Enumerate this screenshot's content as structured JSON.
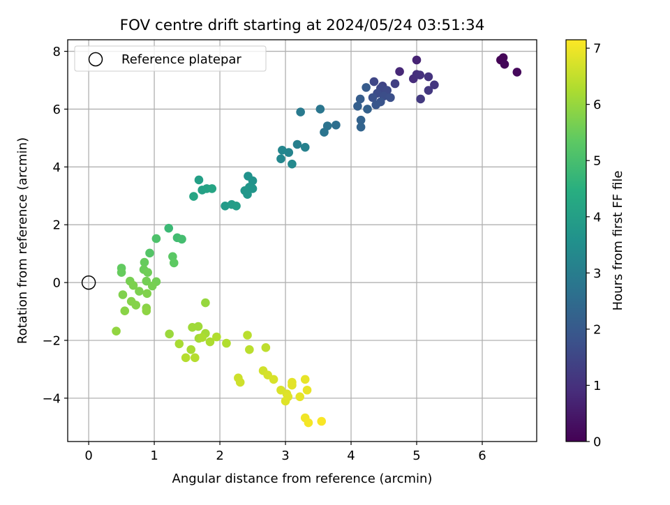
{
  "chart_data": {
    "type": "scatter",
    "title": "FOV centre drift starting at 2024/05/24 03:51:34",
    "xlabel": "Angular distance from reference (arcmin)",
    "ylabel": "Rotation from reference (arcmin)",
    "xlim": [
      -0.32,
      6.83
    ],
    "ylim": [
      -5.5,
      8.4
    ],
    "xticks": [
      0,
      1,
      2,
      3,
      4,
      5,
      6
    ],
    "yticks": [
      -4,
      -2,
      0,
      2,
      4,
      6,
      8
    ],
    "grid": true,
    "legend": {
      "position": "top-left",
      "entries": [
        "Reference platepar"
      ]
    },
    "colorbar": {
      "label": "Hours from first FF file",
      "range": [
        0,
        7.15
      ],
      "ticks": [
        0,
        1,
        2,
        3,
        4,
        5,
        6,
        7
      ],
      "colormap": "viridis"
    },
    "reference_point": {
      "x": 0,
      "y": 0,
      "label": "Reference platepar"
    },
    "series": [
      {
        "color_by": "hours",
        "points": [
          [
            6.28,
            7.7,
            0.05
          ],
          [
            6.32,
            7.78,
            0.08
          ],
          [
            6.34,
            7.55,
            0.12
          ],
          [
            6.53,
            7.28,
            0.15
          ],
          [
            5.0,
            7.7,
            0.7
          ],
          [
            4.74,
            7.3,
            0.8
          ],
          [
            4.95,
            7.05,
            0.9
          ],
          [
            5.0,
            7.2,
            0.95
          ],
          [
            5.05,
            7.18,
            1.0
          ],
          [
            5.18,
            7.12,
            1.05
          ],
          [
            5.27,
            6.84,
            1.1
          ],
          [
            5.18,
            6.65,
            1.15
          ],
          [
            5.06,
            6.35,
            1.2
          ],
          [
            4.67,
            6.88,
            1.35
          ],
          [
            4.48,
            6.8,
            1.45
          ],
          [
            4.35,
            6.95,
            1.5
          ],
          [
            4.45,
            6.72,
            1.55
          ],
          [
            4.55,
            6.65,
            1.6
          ],
          [
            4.4,
            6.55,
            1.65
          ],
          [
            4.5,
            6.45,
            1.7
          ],
          [
            4.6,
            6.4,
            1.75
          ],
          [
            4.33,
            6.4,
            1.8
          ],
          [
            4.45,
            6.25,
            1.85
          ],
          [
            4.38,
            6.15,
            1.9
          ],
          [
            4.23,
            6.75,
            2.05
          ],
          [
            4.14,
            6.35,
            2.1
          ],
          [
            4.1,
            6.1,
            2.15
          ],
          [
            4.25,
            6.0,
            2.2
          ],
          [
            4.15,
            5.62,
            2.25
          ],
          [
            4.15,
            5.38,
            2.3
          ],
          [
            3.77,
            5.45,
            2.6
          ],
          [
            3.64,
            5.42,
            2.7
          ],
          [
            3.59,
            5.2,
            2.75
          ],
          [
            3.53,
            6.0,
            2.8
          ],
          [
            3.23,
            5.9,
            2.9
          ],
          [
            3.18,
            4.78,
            3.05
          ],
          [
            3.3,
            4.68,
            3.1
          ],
          [
            3.05,
            4.5,
            3.2
          ],
          [
            2.95,
            4.58,
            3.25
          ],
          [
            2.93,
            4.28,
            3.3
          ],
          [
            3.1,
            4.1,
            3.35
          ],
          [
            2.43,
            3.68,
            3.6
          ],
          [
            2.5,
            3.52,
            3.65
          ],
          [
            2.45,
            3.3,
            3.7
          ],
          [
            2.5,
            3.25,
            3.7
          ],
          [
            2.38,
            3.18,
            3.75
          ],
          [
            2.42,
            3.05,
            3.75
          ],
          [
            2.08,
            2.65,
            3.85
          ],
          [
            2.18,
            2.7,
            3.9
          ],
          [
            2.25,
            2.65,
            3.95
          ],
          [
            1.68,
            3.55,
            4.0
          ],
          [
            1.73,
            3.2,
            4.05
          ],
          [
            1.8,
            3.25,
            4.1
          ],
          [
            1.88,
            3.25,
            4.15
          ],
          [
            1.6,
            2.98,
            4.2
          ],
          [
            1.22,
            1.88,
            4.8
          ],
          [
            1.35,
            1.55,
            4.9
          ],
          [
            1.42,
            1.5,
            4.95
          ],
          [
            1.03,
            1.52,
            5.1
          ],
          [
            0.93,
            1.02,
            5.2
          ],
          [
            1.28,
            0.9,
            5.3
          ],
          [
            1.3,
            0.68,
            5.35
          ],
          [
            0.5,
            0.5,
            5.4
          ],
          [
            0.5,
            0.35,
            5.45
          ],
          [
            0.85,
            0.7,
            5.45
          ],
          [
            0.84,
            0.45,
            5.5
          ],
          [
            0.9,
            0.35,
            5.55
          ],
          [
            0.88,
            0.05,
            5.6
          ],
          [
            1.03,
            0.03,
            5.6
          ],
          [
            0.97,
            -0.12,
            5.65
          ],
          [
            0.63,
            0.05,
            5.65
          ],
          [
            0.68,
            -0.1,
            5.7
          ],
          [
            0.77,
            -0.3,
            5.7
          ],
          [
            0.52,
            -0.42,
            5.75
          ],
          [
            0.89,
            -0.38,
            5.75
          ],
          [
            0.65,
            -0.65,
            5.8
          ],
          [
            0.72,
            -0.78,
            5.8
          ],
          [
            0.55,
            -0.98,
            5.85
          ],
          [
            0.88,
            -0.88,
            5.85
          ],
          [
            0.88,
            -0.98,
            5.9
          ],
          [
            0.42,
            -1.68,
            5.95
          ],
          [
            1.78,
            -0.7,
            6.0
          ],
          [
            1.23,
            -1.78,
            6.05
          ],
          [
            1.58,
            -1.55,
            6.1
          ],
          [
            1.67,
            -1.52,
            6.1
          ],
          [
            1.78,
            -1.76,
            6.15
          ],
          [
            1.68,
            -1.93,
            6.15
          ],
          [
            1.38,
            -2.12,
            6.2
          ],
          [
            1.56,
            -2.32,
            6.2
          ],
          [
            1.73,
            -1.9,
            6.25
          ],
          [
            1.85,
            -2.05,
            6.25
          ],
          [
            1.95,
            -1.88,
            6.3
          ],
          [
            2.1,
            -2.1,
            6.3
          ],
          [
            1.48,
            -2.6,
            6.35
          ],
          [
            1.62,
            -2.6,
            6.35
          ],
          [
            2.42,
            -1.82,
            6.4
          ],
          [
            2.45,
            -2.32,
            6.4
          ],
          [
            2.7,
            -2.25,
            6.45
          ],
          [
            2.28,
            -3.3,
            6.6
          ],
          [
            2.31,
            -3.45,
            6.62
          ],
          [
            2.66,
            -3.05,
            6.65
          ],
          [
            2.73,
            -3.2,
            6.7
          ],
          [
            2.82,
            -3.35,
            6.72
          ],
          [
            2.93,
            -3.72,
            6.75
          ],
          [
            3.02,
            -3.85,
            6.78
          ],
          [
            3.0,
            -4.1,
            6.8
          ],
          [
            3.04,
            -3.95,
            6.82
          ],
          [
            3.1,
            -3.55,
            6.85
          ],
          [
            3.1,
            -3.45,
            6.86
          ],
          [
            3.22,
            -3.95,
            6.88
          ],
          [
            3.3,
            -3.35,
            6.9
          ],
          [
            3.33,
            -3.72,
            6.92
          ],
          [
            3.3,
            -4.68,
            7.0
          ],
          [
            3.35,
            -4.85,
            7.05
          ],
          [
            3.55,
            -4.8,
            7.1
          ]
        ]
      }
    ]
  }
}
